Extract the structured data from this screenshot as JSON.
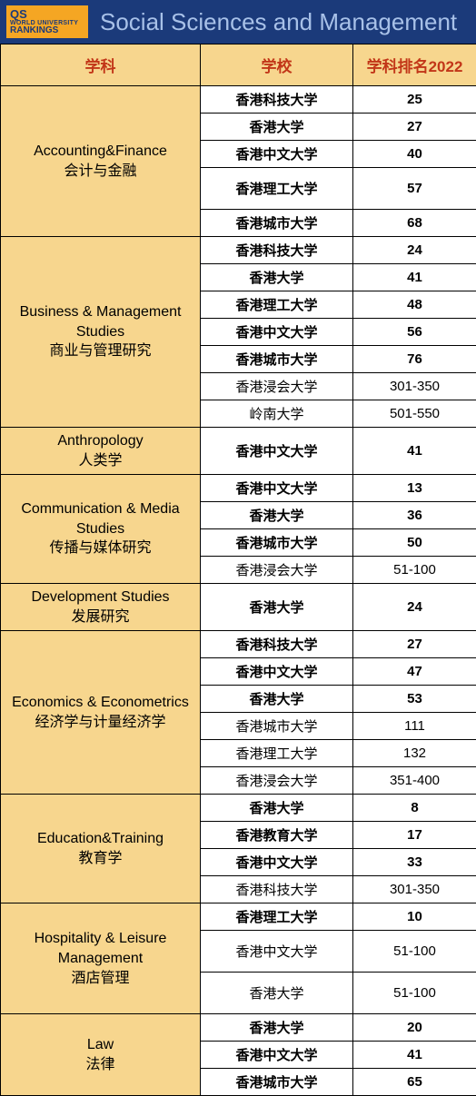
{
  "header": {
    "logo_top": "QS",
    "logo_mid": "WORLD UNIVERSITY",
    "logo_bot": "RANKINGS",
    "title": "Social Sciences and Management"
  },
  "columns": {
    "subject": "学科",
    "school": "学校",
    "rank": "学科排名2022"
  },
  "colors": {
    "header_bg": "#1b3a7a",
    "header_text": "#a8c1e8",
    "logo_bg": "#f5a623",
    "th_bg": "#f7d68e",
    "th_text": "#c23618",
    "subject_bg": "#f7d68e",
    "cell_text": "#000000"
  },
  "subjects": [
    {
      "name_en": "Accounting&Finance",
      "name_cn": "会计与金融",
      "rows": [
        {
          "school": "香港科技大学",
          "rank": "25",
          "bold": true
        },
        {
          "school": "香港大学",
          "rank": "27",
          "bold": true
        },
        {
          "school": "香港中文大学",
          "rank": "40",
          "bold": true
        },
        {
          "school": "香港理工大学",
          "rank": "57",
          "bold": true,
          "tall": true
        },
        {
          "school": "香港城市大学",
          "rank": "68",
          "bold": true
        }
      ]
    },
    {
      "name_en": "Business & Management Studies",
      "name_cn": "商业与管理研究",
      "rows": [
        {
          "school": "香港科技大学",
          "rank": "24",
          "bold": true
        },
        {
          "school": "香港大学",
          "rank": "41",
          "bold": true
        },
        {
          "school": "香港理工大学",
          "rank": "48",
          "bold": true
        },
        {
          "school": "香港中文大学",
          "rank": "56",
          "bold": true
        },
        {
          "school": "香港城市大学",
          "rank": "76",
          "bold": true
        },
        {
          "school": "香港浸会大学",
          "rank": "301-350",
          "bold": false
        },
        {
          "school": "岭南大学",
          "rank": "501-550",
          "bold": false
        }
      ]
    },
    {
      "name_en": "Anthropology",
      "name_cn": "人类学",
      "rows": [
        {
          "school": "香港中文大学",
          "rank": "41",
          "bold": true,
          "tall": true
        }
      ]
    },
    {
      "name_en": "Communication & Media Studies",
      "name_cn": "传播与媒体研究",
      "rows": [
        {
          "school": "香港中文大学",
          "rank": "13",
          "bold": true
        },
        {
          "school": "香港大学",
          "rank": "36",
          "bold": true
        },
        {
          "school": "香港城市大学",
          "rank": "50",
          "bold": true
        },
        {
          "school": "香港浸会大学",
          "rank": "51-100",
          "bold": false
        }
      ]
    },
    {
      "name_en": "Development Studies",
      "name_cn": "发展研究",
      "rows": [
        {
          "school": "香港大学",
          "rank": "24",
          "bold": true,
          "tall": true
        }
      ]
    },
    {
      "name_en": "Economics & Econometrics",
      "name_cn": "经济学与计量经济学",
      "rows": [
        {
          "school": "香港科技大学",
          "rank": "27",
          "bold": true
        },
        {
          "school": "香港中文大学",
          "rank": "47",
          "bold": true
        },
        {
          "school": "香港大学",
          "rank": "53",
          "bold": true
        },
        {
          "school": "香港城市大学",
          "rank": "111",
          "bold": false
        },
        {
          "school": "香港理工大学",
          "rank": "132",
          "bold": false
        },
        {
          "school": "香港浸会大学",
          "rank": "351-400",
          "bold": false
        }
      ]
    },
    {
      "name_en": "Education&Training",
      "name_cn": "教育学",
      "rows": [
        {
          "school": "香港大学",
          "rank": "8",
          "bold": true
        },
        {
          "school": "香港教育大学",
          "rank": "17",
          "bold": true
        },
        {
          "school": "香港中文大学",
          "rank": "33",
          "bold": true
        },
        {
          "school": "香港科技大学",
          "rank": "301-350",
          "bold": false
        }
      ]
    },
    {
      "name_en": "Hospitality & Leisure Management",
      "name_cn": "酒店管理",
      "rows": [
        {
          "school": "香港理工大学",
          "rank": "10",
          "bold": true
        },
        {
          "school": "香港中文大学",
          "rank": "51-100",
          "bold": false,
          "tall": true
        },
        {
          "school": "香港大学",
          "rank": "51-100",
          "bold": false,
          "tall": true
        }
      ]
    },
    {
      "name_en": "Law",
      "name_cn": "法律",
      "rows": [
        {
          "school": "香港大学",
          "rank": "20",
          "bold": true
        },
        {
          "school": "香港中文大学",
          "rank": "41",
          "bold": true
        },
        {
          "school": "香港城市大学",
          "rank": "65",
          "bold": true
        }
      ]
    }
  ]
}
